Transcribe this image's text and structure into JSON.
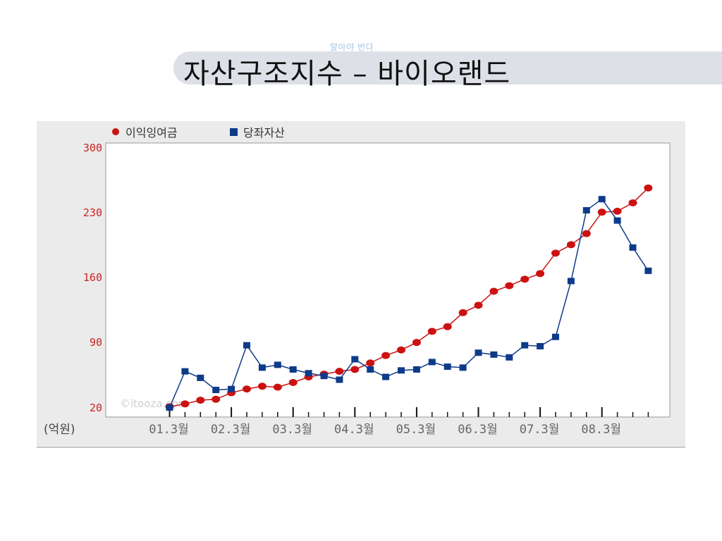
{
  "slide": {
    "subtitle": "알아야 번다",
    "title": "자산구조지수 – 바이오랜드"
  },
  "chart_data": {
    "type": "line",
    "series": [
      {
        "name": "이익잉여금",
        "color": "#cc1111",
        "marker": "circle",
        "values": [
          22,
          25,
          29,
          30,
          37,
          41,
          44,
          43,
          48,
          54,
          57,
          60,
          62,
          69,
          77,
          83,
          91,
          103,
          108,
          123,
          131,
          146,
          152,
          159,
          165,
          187,
          196,
          208,
          231,
          232,
          241,
          257
        ]
      },
      {
        "name": "당좌자산",
        "color": "#0d3b8a",
        "marker": "square",
        "values": [
          21,
          60,
          53,
          40,
          41,
          88,
          64,
          67,
          62,
          58,
          55,
          51,
          73,
          62,
          54,
          61,
          62,
          70,
          65,
          64,
          80,
          78,
          75,
          88,
          87,
          97,
          157,
          233,
          245,
          222,
          193,
          168
        ]
      }
    ],
    "x_ticks": [
      "01.3월",
      "02.3월",
      "03.3월",
      "04.3월",
      "05.3월",
      "06.3월",
      "07.3월",
      "08.3월"
    ],
    "y_ticks": [
      "300",
      "230",
      "160",
      "90",
      "20"
    ],
    "ylim": [
      20,
      300
    ],
    "ylabel": "(억원)",
    "legend_position": "top-left",
    "grid": false,
    "watermark": "©itooza.com"
  }
}
